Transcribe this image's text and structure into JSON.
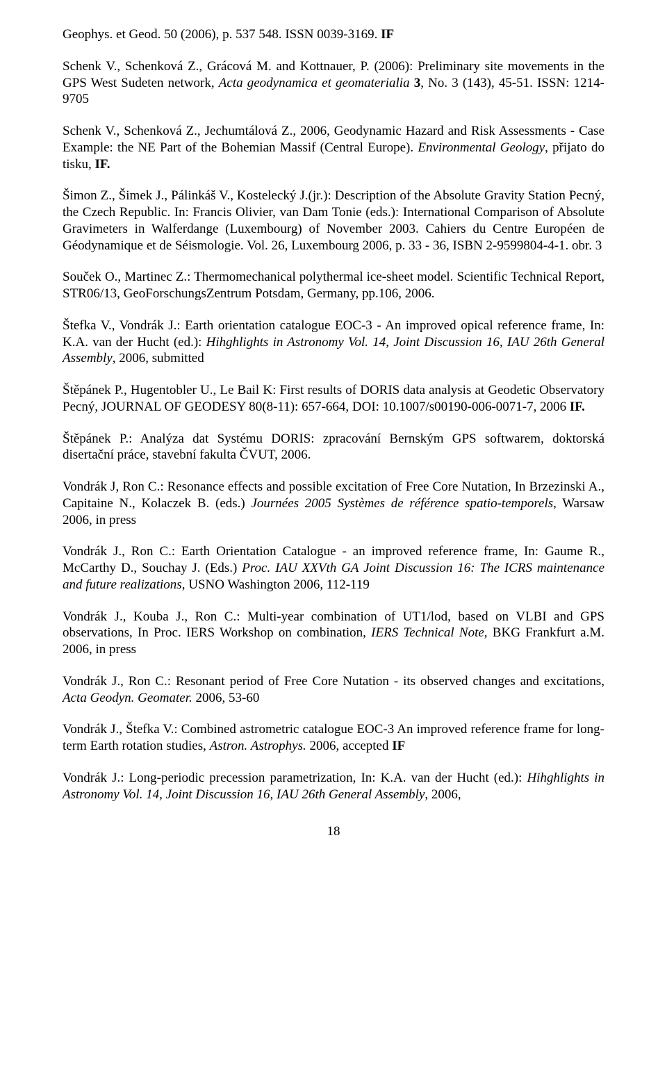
{
  "paragraphs": [
    {
      "segments": [
        {
          "text": "Geophys. et Geod. 50 (2006), p. 537 548. ISSN 0039-3169. "
        },
        {
          "text": "IF",
          "bold": true
        }
      ]
    },
    {
      "segments": [
        {
          "text": "Schenk V., Schenková Z., Grácová M. and Kottnauer, P. (2006): Preliminary site movements in the GPS West Sudeten network, "
        },
        {
          "text": "Acta geodynamica et geomaterialia",
          "italic": true
        },
        {
          "text": " "
        },
        {
          "text": "3",
          "bold": true
        },
        {
          "text": ", No. 3 (143), 45-51. ISSN: 1214-9705"
        }
      ]
    },
    {
      "segments": [
        {
          "text": "Schenk V., Schenková Z., Jechumtálová Z., 2006, Geodynamic Hazard and Risk Assessments - Case Example: the NE Part of the Bohemian Massif (Central Europe). "
        },
        {
          "text": "Environmental Geology",
          "italic": true
        },
        {
          "text": ", přijato do tisku, "
        },
        {
          "text": "IF.",
          "bold": true
        }
      ]
    },
    {
      "segments": [
        {
          "text": "Šimon Z., Šimek J., Pálinkáš V., Kostelecký J.(jr.): Description of the Absolute Gravity Station Pecný, the Czech Republic. In: Francis Olivier, van Dam Tonie (eds.): International Comparison of Absolute Gravimeters in Walferdange (Luxembourg) of November 2003. Cahiers du Centre Européen de Géodynamique et de Séismologie. Vol. 26, Luxembourg 2006, p. 33 - 36, ISBN 2-9599804-4-1. obr. 3"
        }
      ]
    },
    {
      "segments": [
        {
          "text": "Souček O., Martinec Z.: Thermomechanical polythermal ice-sheet model. Scientific Technical Report, STR06/13, GeoForschungsZentrum Potsdam, Germany, pp.106, 2006."
        }
      ]
    },
    {
      "segments": [
        {
          "text": "Štefka V., Vondrák J.: Earth orientation catalogue EOC-3 - An improved opical reference frame, In: K.A. van der Hucht (ed.): "
        },
        {
          "text": "Hihghlights in Astronomy Vol. 14, Joint Discussion 16, IAU 26th General Assembly",
          "italic": true
        },
        {
          "text": ", 2006, submitted"
        }
      ]
    },
    {
      "segments": [
        {
          "text": "Štěpánek P., Hugentobler U., Le Bail K: First results of DORIS data analysis at Geodetic Observatory Pecný, JOURNAL OF GEODESY 80(8-11): 657-664, DOI: 10.1007/s00190-006-0071-7, 2006 "
        },
        {
          "text": "IF.",
          "bold": true
        }
      ]
    },
    {
      "segments": [
        {
          "text": "Štěpánek P.: Analýza dat Systému DORIS: zpracování Bernským GPS softwarem, doktorská disertační práce, stavební fakulta ČVUT, 2006."
        }
      ]
    },
    {
      "segments": [
        {
          "text": "Vondrák J, Ron C.: Resonance effects and possible excitation of Free Core Nutation, In Brzezinski A., Capitaine N., Kolaczek B. (eds.) "
        },
        {
          "text": "Journées 2005 Systèmes de référence spatio-temporels",
          "italic": true
        },
        {
          "text": ", Warsaw 2006, in press"
        }
      ]
    },
    {
      "segments": [
        {
          "text": "Vondrák J., Ron C.: Earth Orientation Catalogue - an improved reference frame, In: Gaume R., McCarthy D., Souchay J. (Eds.) "
        },
        {
          "text": "Proc. IAU XXVth GA Joint Discussion 16: The ICRS maintenance and future realizations",
          "italic": true
        },
        {
          "text": ", USNO Washington 2006, 112-119"
        }
      ]
    },
    {
      "segments": [
        {
          "text": "Vondrák J., Kouba J., Ron C.: Multi-year combination of UT1/lod, based on VLBI and GPS observations, In Proc. IERS Workshop on combination, "
        },
        {
          "text": "IERS Technical Note,",
          "italic": true
        },
        {
          "text": " BKG Frankfurt a.M. 2006, in press"
        }
      ]
    },
    {
      "segments": [
        {
          "text": "Vondrák J., Ron C.: Resonant period of Free Core Nutation - its observed changes and excitations, "
        },
        {
          "text": "Acta Geodyn. Geomater.",
          "italic": true
        },
        {
          "text": " 2006, 53-60"
        }
      ]
    },
    {
      "segments": [
        {
          "text": "Vondrák J., Štefka V.: Combined astrometric catalogue EOC-3 An improved reference frame for long-term Earth rotation studies, "
        },
        {
          "text": "Astron. Astrophys.",
          "italic": true
        },
        {
          "text": " 2006, accepted "
        },
        {
          "text": "IF",
          "bold": true
        }
      ]
    },
    {
      "segments": [
        {
          "text": "Vondrák J.: Long-periodic precession parametrization, In: K.A. van der Hucht (ed.): "
        },
        {
          "text": "Hihghlights in Astronomy Vol. 14, Joint Discussion 16, IAU 26th General Assembly",
          "italic": true
        },
        {
          "text": ", 2006,"
        }
      ]
    }
  ],
  "page_number": "18"
}
